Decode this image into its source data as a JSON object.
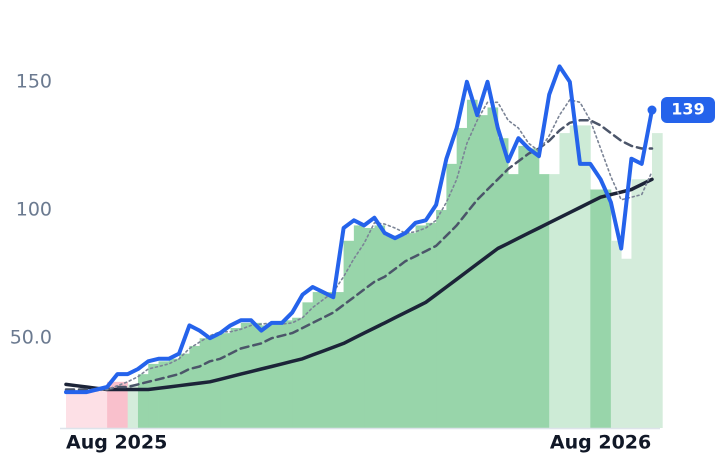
{
  "chart_data": {
    "type": "line",
    "categories": [
      "Aug 2025",
      null,
      null,
      null,
      null,
      null,
      null,
      null,
      null,
      null,
      null,
      null,
      null,
      null,
      null,
      null,
      null,
      null,
      null,
      null,
      null,
      null,
      null,
      null,
      null,
      null,
      null,
      null,
      null,
      null,
      null,
      null,
      null,
      null,
      null,
      null,
      null,
      null,
      null,
      null,
      null,
      null,
      null,
      null,
      null,
      null,
      null,
      null,
      null,
      null,
      null,
      null,
      "Aug 2026",
      null,
      null,
      null,
      null,
      null
    ],
    "ylim": [
      15,
      178
    ],
    "yticks": [
      {
        "value": 50,
        "label": "50.0"
      },
      100,
      150
    ],
    "series": [
      {
        "type": "bar",
        "values": [
          29,
          29,
          29,
          30,
          33,
          33,
          32,
          36,
          40,
          41,
          42,
          44,
          47,
          50,
          51,
          52,
          54,
          56,
          56,
          55,
          56,
          57,
          58,
          64,
          68,
          68,
          68,
          88,
          94,
          93,
          94,
          90,
          90,
          91,
          94,
          95,
          100,
          118,
          132,
          143,
          137,
          140,
          128,
          114,
          125,
          124,
          114,
          114,
          130,
          133,
          133,
          108,
          108,
          88,
          81,
          112,
          112,
          130
        ],
        "colors": [
          "#fde0e6",
          "#fde0e6",
          "#fde0e6",
          "#fde0e6",
          "#f9c0cc",
          "#f9c0cc",
          "#d4ecdb",
          "#98d5aa",
          "#98d5aa",
          "#98d5aa",
          "#98d5aa",
          "#98d5aa",
          "#98d5aa",
          "#98d5aa",
          "#98d5aa",
          "#98d5aa",
          "#98d5aa",
          "#98d5aa",
          "#98d5aa",
          "#98d5aa",
          "#98d5aa",
          "#98d5aa",
          "#98d5aa",
          "#98d5aa",
          "#98d5aa",
          "#98d5aa",
          "#98d5aa",
          "#98d5aa",
          "#98d5aa",
          "#98d5aa",
          "#98d5aa",
          "#98d5aa",
          "#98d5aa",
          "#98d5aa",
          "#98d5aa",
          "#98d5aa",
          "#98d5aa",
          "#98d5aa",
          "#98d5aa",
          "#98d5aa",
          "#98d5aa",
          "#98d5aa",
          "#98d5aa",
          "#98d5aa",
          "#98d5aa",
          "#98d5aa",
          "#98d5aa",
          "#cdebd6",
          "#cdebd6",
          "#cdebd6",
          "#cdebd6",
          "#98d5aa",
          "#98d5aa",
          "#d4ecdb",
          "#d4ecdb",
          "#d4ecdb",
          "#d4ecdb",
          "#d4ecdb"
        ]
      },
      {
        "type": "line",
        "color": "#1c2438",
        "width": 3.5,
        "dash": "solid",
        "values": [
          32,
          31.5,
          31,
          30.5,
          30,
          30,
          30,
          30,
          30,
          30.5,
          31,
          31.5,
          32,
          32.5,
          33,
          34,
          35,
          36,
          37,
          38,
          39,
          40,
          41,
          42,
          43.5,
          45,
          46.5,
          48,
          50,
          52,
          54,
          56,
          58,
          60,
          62,
          64,
          67,
          70,
          73,
          76,
          79,
          82,
          85,
          87,
          89,
          91,
          93,
          95,
          97,
          99,
          101,
          103,
          105,
          106,
          107,
          108,
          110,
          112
        ]
      },
      {
        "type": "line",
        "color": "#4b5569",
        "width": 2.5,
        "dash": "dashed",
        "values": [
          30,
          30,
          30,
          30,
          30,
          31,
          31,
          32,
          33,
          34,
          35,
          36,
          38,
          39,
          41,
          42,
          44,
          46,
          47,
          48,
          50,
          51,
          52,
          54,
          56,
          58,
          60,
          63,
          66,
          69,
          72,
          74,
          77,
          80,
          82,
          84,
          86,
          90,
          94,
          99,
          104,
          108,
          112,
          116,
          119,
          122,
          124,
          127,
          131,
          134,
          135,
          135,
          133,
          130,
          127,
          125,
          124,
          124
        ]
      },
      {
        "type": "line",
        "color": "#7b8496",
        "width": 1.6,
        "dash": "dotted",
        "values": [
          29,
          29,
          29,
          29.5,
          30,
          31.5,
          33,
          35,
          38,
          39,
          40,
          42,
          46,
          48.5,
          51,
          52.5,
          52.5,
          53.5,
          55,
          55.5,
          56,
          55.5,
          56,
          58,
          62,
          65,
          68,
          74,
          81,
          87,
          95,
          94.5,
          93,
          91,
          91.5,
          93,
          96,
          103,
          112,
          126,
          135,
          142,
          142,
          135,
          132,
          126,
          123,
          129,
          137,
          143,
          142,
          135,
          124,
          113,
          104,
          105,
          106,
          115
        ]
      },
      {
        "type": "line",
        "color": "#2563eb",
        "width": 4,
        "dash": "solid",
        "last_badge": true,
        "values": [
          29,
          29,
          29,
          30,
          31,
          36,
          36,
          38,
          41,
          42,
          42,
          44,
          55,
          53,
          50,
          52,
          55,
          57,
          57,
          53,
          56,
          56,
          60,
          67,
          70,
          68,
          66,
          93,
          96,
          94,
          97,
          91,
          89,
          91,
          95,
          96,
          102,
          120,
          132,
          150,
          137,
          150,
          132,
          119,
          128,
          124,
          121,
          145,
          156,
          150,
          118,
          118,
          112,
          103,
          85,
          120,
          118,
          139
        ]
      }
    ]
  }
}
